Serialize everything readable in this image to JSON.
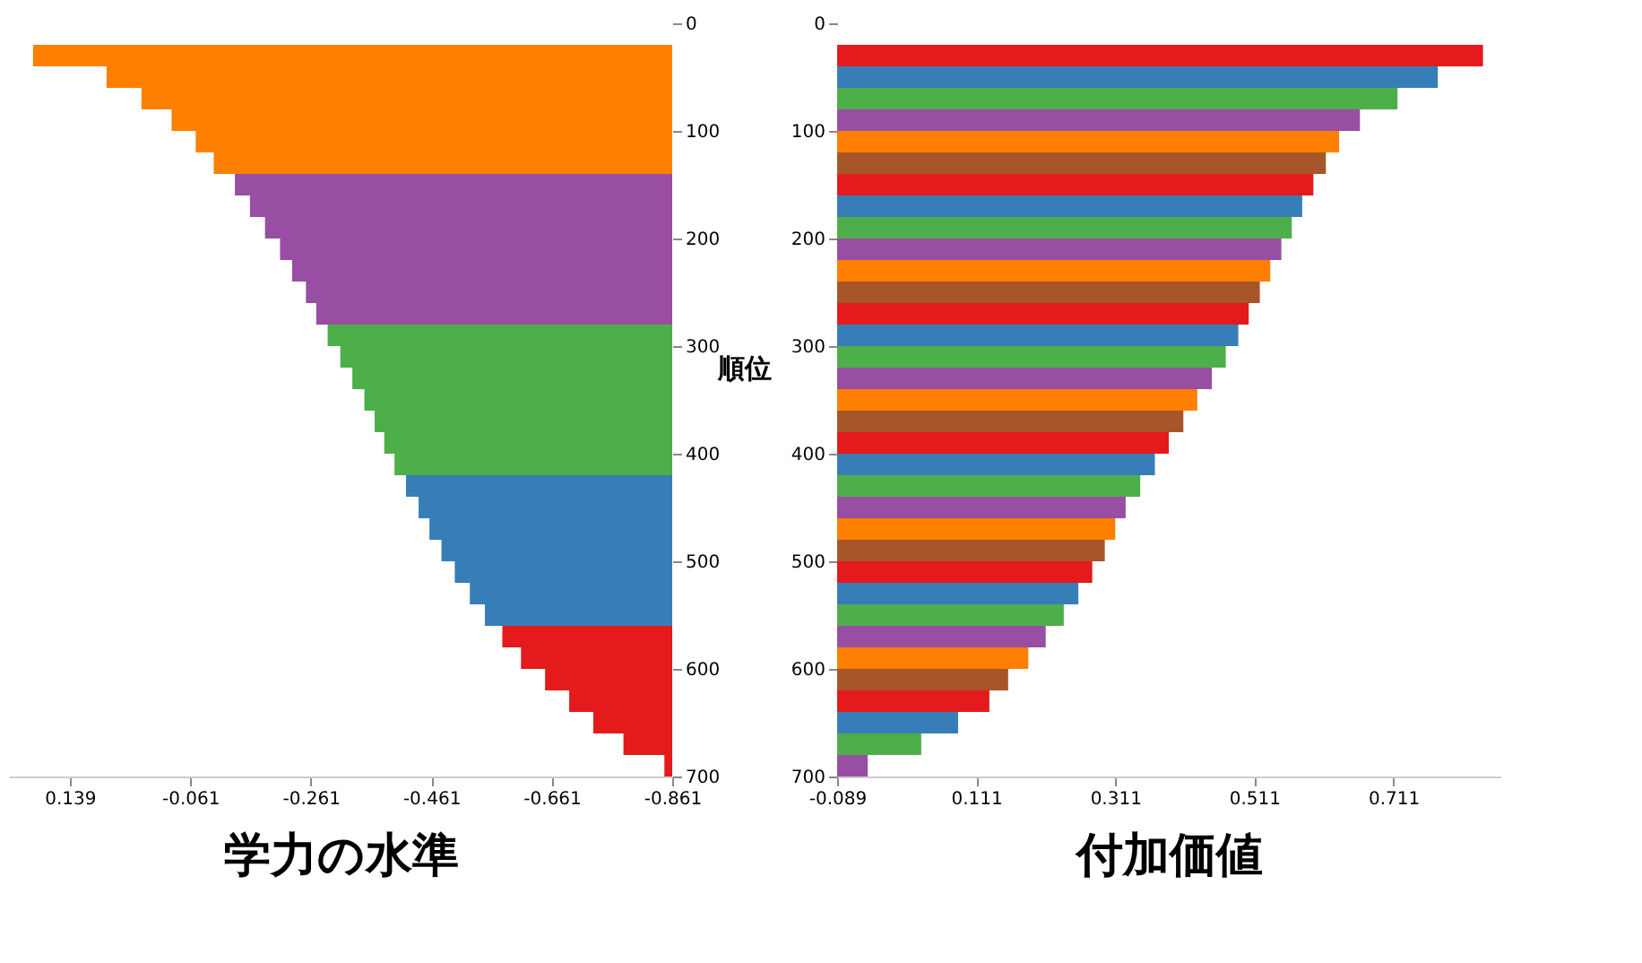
{
  "chart_data": [
    {
      "type": "bar",
      "orientation": "horizontal",
      "xlabel": "学力の水準",
      "ylabel": "順位",
      "x": [
        30,
        50,
        70,
        90,
        110,
        130,
        150,
        170,
        190,
        210,
        230,
        250,
        270,
        290,
        310,
        330,
        350,
        370,
        390,
        410,
        430,
        450,
        470,
        490,
        510,
        530,
        550,
        570,
        590,
        610,
        630,
        650,
        670,
        690
      ],
      "base": [
        -0.861,
        -0.861,
        -0.861,
        -0.861,
        -0.861,
        -0.861,
        -0.861,
        -0.861,
        -0.861,
        -0.861,
        -0.861,
        -0.861,
        -0.861,
        -0.861,
        -0.861,
        -0.861,
        -0.861,
        -0.861,
        -0.861,
        -0.861,
        -0.861,
        -0.861,
        -0.861,
        -0.861,
        -0.861,
        -0.861,
        -0.861,
        -0.861,
        -0.861,
        -0.861,
        -0.861,
        -0.861,
        -0.861,
        -0.861
      ],
      "values": [
        1.061,
        0.939,
        0.881,
        0.831,
        0.791,
        0.761,
        0.726,
        0.701,
        0.676,
        0.651,
        0.631,
        0.608,
        0.591,
        0.572,
        0.551,
        0.531,
        0.511,
        0.494,
        0.478,
        0.461,
        0.442,
        0.421,
        0.403,
        0.383,
        0.361,
        0.336,
        0.311,
        0.282,
        0.251,
        0.211,
        0.171,
        0.131,
        0.081,
        0.013
      ],
      "colors": [
        "#ff7f00",
        "#ff7f00",
        "#ff7f00",
        "#ff7f00",
        "#ff7f00",
        "#ff7f00",
        "#984ea3",
        "#984ea3",
        "#984ea3",
        "#984ea3",
        "#984ea3",
        "#984ea3",
        "#984ea3",
        "#4daf4a",
        "#4daf4a",
        "#4daf4a",
        "#4daf4a",
        "#4daf4a",
        "#4daf4a",
        "#4daf4a",
        "#377eb8",
        "#377eb8",
        "#377eb8",
        "#377eb8",
        "#377eb8",
        "#377eb8",
        "#377eb8",
        "#e41a1c",
        "#e41a1c",
        "#e41a1c",
        "#e41a1c",
        "#e41a1c",
        "#e41a1c",
        "#e41a1c"
      ],
      "xlim": [
        0.24,
        -0.861
      ],
      "xticks": [
        0.139,
        -0.061,
        -0.261,
        -0.461,
        -0.661,
        -0.861
      ],
      "ylim": [
        700,
        0
      ],
      "yticks": [
        0,
        100,
        200,
        300,
        400,
        500,
        600,
        700
      ],
      "grid": false
    },
    {
      "type": "bar",
      "orientation": "horizontal",
      "xlabel": "付加価値",
      "x": [
        30,
        50,
        70,
        90,
        110,
        130,
        150,
        170,
        190,
        210,
        230,
        250,
        270,
        290,
        310,
        330,
        350,
        370,
        390,
        410,
        430,
        450,
        470,
        490,
        510,
        530,
        550,
        570,
        590,
        610,
        630,
        650,
        670,
        690
      ],
      "base": [
        -0.089,
        -0.089,
        -0.089,
        -0.089,
        -0.089,
        -0.089,
        -0.089,
        -0.089,
        -0.089,
        -0.089,
        -0.089,
        -0.089,
        -0.089,
        -0.089,
        -0.089,
        -0.089,
        -0.089,
        -0.089,
        -0.089,
        -0.089,
        -0.089,
        -0.089,
        -0.089,
        -0.089,
        -0.089,
        -0.089,
        -0.089,
        -0.089,
        -0.089,
        -0.089,
        -0.089,
        -0.089,
        -0.089,
        -0.089
      ],
      "values": [
        0.929,
        0.864,
        0.806,
        0.752,
        0.722,
        0.703,
        0.685,
        0.669,
        0.654,
        0.639,
        0.623,
        0.608,
        0.592,
        0.577,
        0.559,
        0.539,
        0.518,
        0.498,
        0.477,
        0.457,
        0.436,
        0.415,
        0.4,
        0.385,
        0.367,
        0.347,
        0.326,
        0.3,
        0.275,
        0.246,
        0.219,
        0.174,
        0.121,
        0.044
      ],
      "colors": [
        "#e41a1c",
        "#377eb8",
        "#4daf4a",
        "#984ea3",
        "#ff7f00",
        "#a65628",
        "#e41a1c",
        "#377eb8",
        "#4daf4a",
        "#984ea3",
        "#ff7f00",
        "#a65628",
        "#e41a1c",
        "#377eb8",
        "#4daf4a",
        "#984ea3",
        "#ff7f00",
        "#a65628",
        "#e41a1c",
        "#377eb8",
        "#4daf4a",
        "#984ea3",
        "#ff7f00",
        "#a65628",
        "#e41a1c",
        "#377eb8",
        "#4daf4a",
        "#984ea3",
        "#ff7f00",
        "#a65628",
        "#e41a1c",
        "#377eb8",
        "#4daf4a",
        "#984ea3"
      ],
      "xlim": [
        -0.089,
        0.865
      ],
      "xticks": [
        -0.089,
        0.111,
        0.311,
        0.511,
        0.711
      ],
      "ylim": [
        700,
        0
      ],
      "yticks": [
        0,
        100,
        200,
        300,
        400,
        500,
        600,
        700
      ],
      "grid": false
    }
  ]
}
